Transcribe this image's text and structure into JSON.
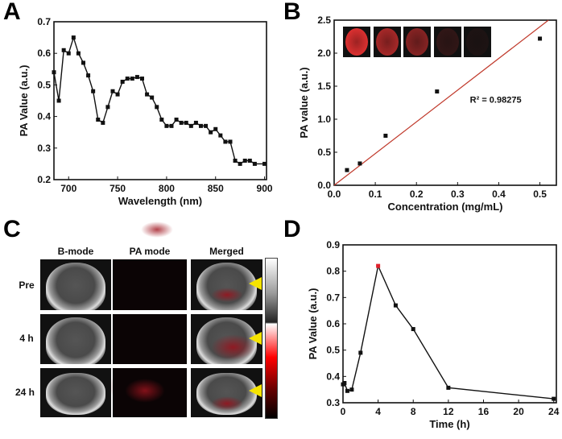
{
  "panels": {
    "a": "A",
    "b": "B",
    "c": "C",
    "d": "D"
  },
  "chart_data": [
    {
      "id": "A",
      "type": "line",
      "xlabel": "Wavelength (nm)",
      "ylabel": "PA Value (a.u.)",
      "xlim": [
        685,
        902
      ],
      "ylim": [
        0.2,
        0.7
      ],
      "xticks": [
        700,
        750,
        800,
        850,
        900
      ],
      "yticks": [
        0.2,
        0.3,
        0.4,
        0.5,
        0.6,
        0.7
      ],
      "ytick_decimals": 1,
      "marker_color": "#000000",
      "x": [
        685,
        690,
        695,
        700,
        705,
        710,
        715,
        720,
        725,
        730,
        735,
        740,
        745,
        750,
        755,
        760,
        765,
        770,
        775,
        780,
        785,
        790,
        795,
        800,
        805,
        810,
        815,
        820,
        825,
        830,
        835,
        840,
        845,
        850,
        855,
        860,
        865,
        870,
        875,
        880,
        885,
        890,
        900
      ],
      "y": [
        0.54,
        0.45,
        0.61,
        0.6,
        0.65,
        0.6,
        0.57,
        0.53,
        0.48,
        0.39,
        0.38,
        0.43,
        0.48,
        0.47,
        0.51,
        0.52,
        0.52,
        0.525,
        0.52,
        0.47,
        0.46,
        0.43,
        0.39,
        0.37,
        0.37,
        0.39,
        0.38,
        0.38,
        0.37,
        0.38,
        0.37,
        0.37,
        0.35,
        0.36,
        0.34,
        0.32,
        0.32,
        0.26,
        0.25,
        0.26,
        0.26,
        0.25,
        0.25
      ]
    },
    {
      "id": "B",
      "type": "scatter",
      "xlabel": "Concentration (mg/mL)",
      "ylabel": "PA value (a.u.)",
      "xlim": [
        0,
        0.54
      ],
      "ylim": [
        0,
        2.5
      ],
      "xticks": [
        0.0,
        0.1,
        0.2,
        0.3,
        0.4,
        0.5
      ],
      "yticks": [
        0.0,
        0.5,
        1.0,
        1.5,
        2.0,
        2.5
      ],
      "ytick_decimals": 1,
      "x": [
        0.03125,
        0.0625,
        0.125,
        0.25,
        0.5
      ],
      "y": [
        0.23,
        0.33,
        0.75,
        1.42,
        2.22
      ],
      "fit": {
        "slope": 4.8,
        "intercept": 0,
        "color": "#c0392b"
      },
      "annotation": "R² = 0.98275",
      "inset_images": 5
    },
    {
      "id": "D",
      "type": "line",
      "xlabel": "Time (h)",
      "ylabel": "PA Value (a.u.)",
      "xlim": [
        0,
        24.3
      ],
      "ylim": [
        0.3,
        0.9
      ],
      "xticks": [
        0,
        4,
        8,
        12,
        16,
        20,
        24
      ],
      "yticks": [
        0.3,
        0.4,
        0.5,
        0.6,
        0.7,
        0.8,
        0.9
      ],
      "ytick_decimals": 1,
      "x": [
        0,
        0.17,
        0.5,
        1,
        2,
        4,
        6,
        8,
        12,
        24
      ],
      "y": [
        0.37,
        0.375,
        0.345,
        0.35,
        0.49,
        0.82,
        0.67,
        0.58,
        0.357,
        0.315
      ],
      "highlight_index": 5,
      "highlight_color": "#e0202a"
    }
  ],
  "panel_c": {
    "columns": [
      "B-mode",
      "PA mode",
      "Merged"
    ],
    "rows": [
      "Pre",
      "4 h",
      "24 h"
    ],
    "arrow_color": "#f5e400"
  }
}
